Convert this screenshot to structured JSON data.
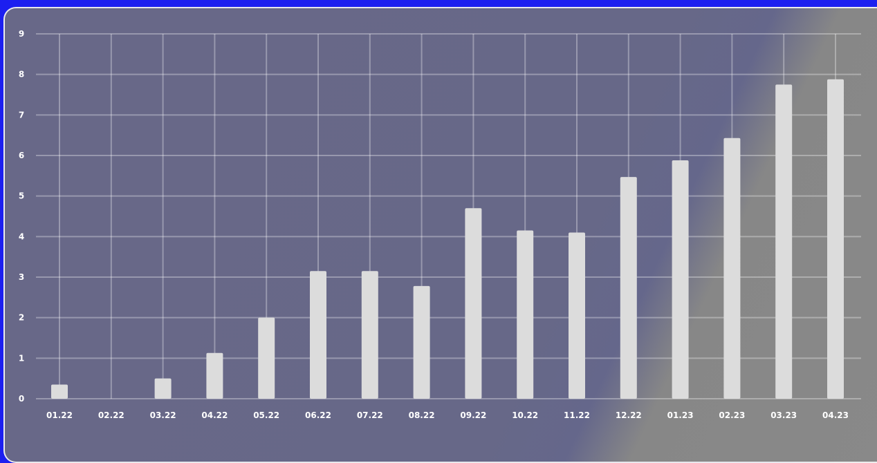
{
  "chart_data": {
    "type": "bar",
    "title": "",
    "xlabel": "",
    "ylabel": "",
    "categories": [
      "01.22",
      "02.22",
      "03.22",
      "04.22",
      "05.22",
      "06.22",
      "07.22",
      "08.22",
      "09.22",
      "10.22",
      "11.22",
      "12.22",
      "01.23",
      "02.23",
      "03.23",
      "04.23"
    ],
    "values": [
      0.35,
      0,
      0.5,
      1.13,
      2.0,
      3.15,
      3.15,
      2.78,
      4.7,
      4.15,
      4.1,
      5.47,
      5.88,
      6.43,
      7.75,
      7.88
    ],
    "ylim": [
      0,
      9
    ],
    "yticks": [
      "0",
      "1",
      "2",
      "3",
      "4",
      "5",
      "6",
      "7",
      "8",
      "9"
    ],
    "grid": true,
    "legend": "none",
    "colors": {
      "bar": "#dcdcdc",
      "panel_primary": "#686888",
      "panel_secondary": "#898989",
      "background": "#1c1ff0",
      "text": "#ffffff"
    }
  }
}
